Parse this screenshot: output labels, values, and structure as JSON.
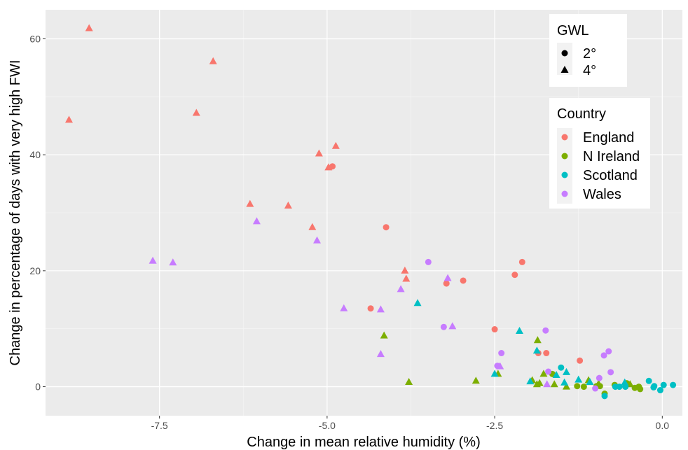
{
  "chart_data": {
    "type": "scatter",
    "xlabel": "Change in mean relative humidity (%)",
    "ylabel": "Change in percentage of days with very high FWI",
    "xlim": [
      -9.2,
      0.3
    ],
    "ylim": [
      -5,
      65
    ],
    "x_ticks": [
      -7.5,
      -5.0,
      -2.5,
      0.0
    ],
    "x_tick_labels": [
      "-7.5",
      "-5.0",
      "-2.5",
      "0.0"
    ],
    "y_ticks": [
      0,
      20,
      40,
      60
    ],
    "y_tick_labels": [
      "0",
      "20",
      "40",
      "60"
    ],
    "grid": true,
    "legend_shape": {
      "title": "GWL",
      "entries": [
        {
          "label": "2°",
          "shape": "circle"
        },
        {
          "label": "4°",
          "shape": "triangle"
        }
      ]
    },
    "legend_color": {
      "title": "Country",
      "entries": [
        {
          "label": "England",
          "color": "#F8766D"
        },
        {
          "label": "N Ireland",
          "color": "#7CAE00"
        },
        {
          "label": "Scotland",
          "color": "#00BFC4"
        },
        {
          "label": "Wales",
          "color": "#C77CFF"
        }
      ]
    },
    "series": [
      {
        "country": "England",
        "gwl": "4°",
        "points": [
          [
            -8.85,
            46.0
          ],
          [
            -8.55,
            61.8
          ],
          [
            -6.95,
            47.2
          ],
          [
            -6.7,
            56.1
          ],
          [
            -6.15,
            31.5
          ],
          [
            -5.58,
            31.2
          ],
          [
            -5.22,
            27.5
          ],
          [
            -5.12,
            40.2
          ],
          [
            -4.98,
            37.8
          ],
          [
            -4.87,
            41.5
          ],
          [
            -3.84,
            20.0
          ],
          [
            -3.82,
            18.6
          ]
        ]
      },
      {
        "country": "England",
        "gwl": "2°",
        "points": [
          [
            -4.92,
            38.0
          ],
          [
            -4.35,
            13.5
          ],
          [
            -4.12,
            27.5
          ],
          [
            -3.22,
            17.8
          ],
          [
            -2.97,
            18.3
          ],
          [
            -2.5,
            9.9
          ],
          [
            -2.2,
            19.3
          ],
          [
            -2.09,
            21.5
          ],
          [
            -1.85,
            5.8
          ],
          [
            -1.73,
            5.8
          ],
          [
            -1.23,
            4.5
          ]
        ]
      },
      {
        "country": "N Ireland",
        "gwl": "4°",
        "points": [
          [
            -4.15,
            8.8
          ],
          [
            -3.78,
            0.8
          ],
          [
            -2.78,
            1.0
          ],
          [
            -2.45,
            2.2
          ],
          [
            -1.94,
            1.1
          ],
          [
            -1.87,
            0.4
          ],
          [
            -1.86,
            8.0
          ],
          [
            -1.83,
            0.6
          ],
          [
            -1.77,
            2.2
          ],
          [
            -1.61,
            0.4
          ],
          [
            -1.43,
            0.0
          ],
          [
            -1.1,
            1.1
          ],
          [
            -0.95,
            0.5
          ],
          [
            -0.48,
            0.4
          ]
        ]
      },
      {
        "country": "N Ireland",
        "gwl": "2°",
        "points": [
          [
            -1.64,
            2.2
          ],
          [
            -1.27,
            0.1
          ],
          [
            -1.17,
            0.0
          ],
          [
            -0.98,
            0.1
          ],
          [
            -0.86,
            -1.2
          ],
          [
            -0.93,
            0.1
          ],
          [
            -0.71,
            0.3
          ],
          [
            -0.53,
            0.6
          ],
          [
            -0.41,
            -0.2
          ],
          [
            -0.35,
            0.0
          ],
          [
            -0.33,
            -0.4
          ]
        ]
      },
      {
        "country": "Scotland",
        "gwl": "4°",
        "points": [
          [
            -3.65,
            14.4
          ],
          [
            -2.5,
            2.2
          ],
          [
            -2.13,
            9.6
          ],
          [
            -1.97,
            0.9
          ],
          [
            -1.87,
            6.2
          ],
          [
            -1.58,
            2.0
          ],
          [
            -1.46,
            0.7
          ],
          [
            -1.43,
            2.5
          ],
          [
            -1.25,
            1.2
          ],
          [
            -1.08,
            0.8
          ],
          [
            -0.56,
            0.7
          ]
        ]
      },
      {
        "country": "Scotland",
        "gwl": "2°",
        "points": [
          [
            -1.51,
            3.3
          ],
          [
            -0.86,
            -1.6
          ],
          [
            -0.7,
            0.0
          ],
          [
            -0.64,
            0.0
          ],
          [
            -0.55,
            0.0
          ],
          [
            -0.2,
            1.0
          ],
          [
            -0.13,
            -0.1
          ],
          [
            -0.12,
            0.1
          ],
          [
            -0.03,
            -0.6
          ],
          [
            0.02,
            0.3
          ],
          [
            0.16,
            0.3
          ]
        ]
      },
      {
        "country": "Wales",
        "gwl": "4°",
        "points": [
          [
            -7.6,
            21.7
          ],
          [
            -7.3,
            21.4
          ],
          [
            -6.05,
            28.5
          ],
          [
            -5.15,
            25.2
          ],
          [
            -4.75,
            13.5
          ],
          [
            -4.2,
            13.3
          ],
          [
            -4.2,
            5.6
          ],
          [
            -3.9,
            16.8
          ],
          [
            -3.2,
            18.7
          ],
          [
            -3.13,
            10.4
          ],
          [
            -2.42,
            3.5
          ],
          [
            -1.72,
            0.4
          ]
        ]
      },
      {
        "country": "Wales",
        "gwl": "2°",
        "points": [
          [
            -3.49,
            21.5
          ],
          [
            -3.26,
            10.3
          ],
          [
            -2.46,
            3.6
          ],
          [
            -2.4,
            5.8
          ],
          [
            -1.74,
            9.7
          ],
          [
            -1.7,
            2.6
          ],
          [
            -1.0,
            -0.3
          ],
          [
            -0.94,
            1.5
          ],
          [
            -0.87,
            5.4
          ],
          [
            -0.8,
            6.1
          ],
          [
            -0.77,
            2.5
          ]
        ]
      }
    ]
  }
}
